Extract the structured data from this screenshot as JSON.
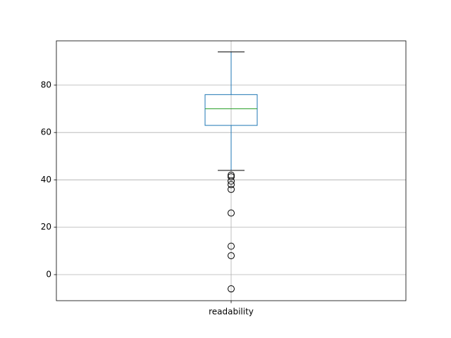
{
  "chart_data": {
    "type": "box",
    "categories": [
      "readability"
    ],
    "series": [
      {
        "color": "#1f77b4",
        "median_color": "#2ca02c",
        "whisker_low": [
          44
        ],
        "q1": [
          63
        ],
        "median": [
          70
        ],
        "q3": [
          76
        ],
        "whisker_high": [
          94
        ],
        "outliers": [
          [
            42,
            41.3,
            39.5,
            38,
            36,
            26,
            12,
            8,
            -6
          ]
        ]
      }
    ],
    "ylim": [
      -11,
      98.7
    ],
    "yticks": [
      0,
      20,
      40,
      60,
      80
    ],
    "grid": true
  }
}
